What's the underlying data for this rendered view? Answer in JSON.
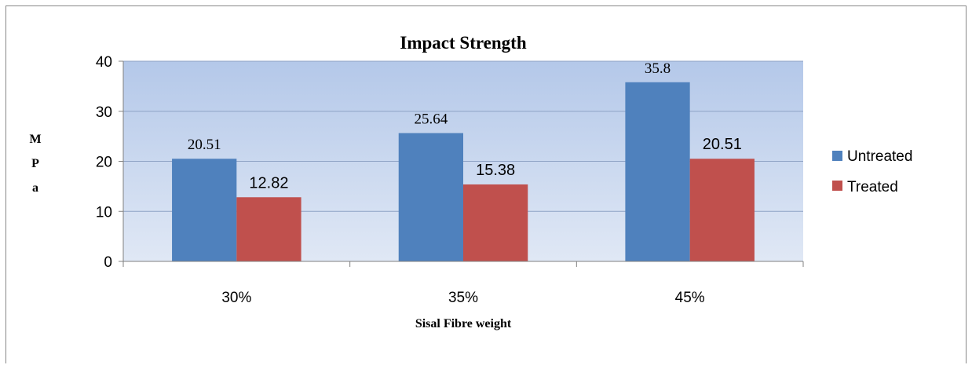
{
  "chart_data": {
    "type": "bar",
    "title": "Impact Strength",
    "xlabel": "Sisal Fibre weight",
    "ylabel": "MPa",
    "ylabel_letters": [
      "M",
      "P",
      "a"
    ],
    "categories": [
      "30%",
      "35%",
      "45%"
    ],
    "ylim": [
      0,
      40
    ],
    "yticks": [
      0,
      10,
      20,
      30,
      40
    ],
    "grid": true,
    "legend_position": "right",
    "series": [
      {
        "name": "Untreated",
        "values": [
          20.51,
          25.64,
          35.8
        ],
        "labels": [
          "20.51",
          "25.64",
          "35.8"
        ],
        "color": "#4F81BD"
      },
      {
        "name": "Treated",
        "values": [
          12.82,
          15.38,
          20.51
        ],
        "labels": [
          "12.82",
          "15.38",
          "20.51"
        ],
        "color": "#C0504D"
      }
    ]
  }
}
